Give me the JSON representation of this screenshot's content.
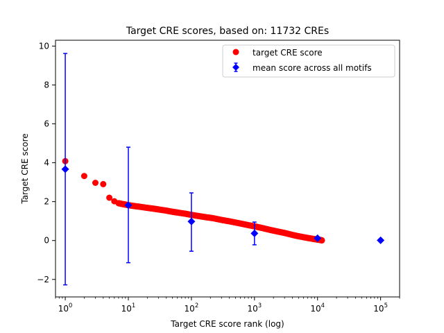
{
  "chart_data": {
    "type": "scatter",
    "title": "Target CRE scores, based on: 11732 CREs",
    "xlabel": "Target CRE score rank (log)",
    "ylabel": "Target CRE score",
    "xscale": "log",
    "xlim": [
      0.7,
      200000
    ],
    "ylim": [
      -2.9,
      10.3
    ],
    "grid": false,
    "legend_placement": "top-right",
    "x_ticks": [
      {
        "value": 1,
        "base": "10",
        "exp": "0"
      },
      {
        "value": 10,
        "base": "10",
        "exp": "1"
      },
      {
        "value": 100,
        "base": "10",
        "exp": "2"
      },
      {
        "value": 1000,
        "base": "10",
        "exp": "3"
      },
      {
        "value": 10000,
        "base": "10",
        "exp": "4"
      },
      {
        "value": 100000,
        "base": "10",
        "exp": "5"
      }
    ],
    "y_ticks": [
      {
        "value": -2,
        "label": "−2"
      },
      {
        "value": 0,
        "label": "0"
      },
      {
        "value": 2,
        "label": "2"
      },
      {
        "value": 4,
        "label": "4"
      },
      {
        "value": 6,
        "label": "6"
      },
      {
        "value": 8,
        "label": "8"
      },
      {
        "value": 10,
        "label": "10"
      }
    ],
    "series": [
      {
        "name": "target CRE score",
        "marker": "circle",
        "color": "#ff0000",
        "points": [
          [
            1,
            4.08
          ],
          [
            2,
            3.32
          ],
          [
            3,
            2.97
          ],
          [
            4,
            2.9
          ],
          [
            5,
            2.2
          ],
          [
            6,
            2.02
          ],
          [
            7,
            1.92
          ],
          [
            8,
            1.88
          ],
          [
            9,
            1.85
          ],
          [
            10,
            1.82
          ],
          [
            12,
            1.78
          ],
          [
            15,
            1.74
          ],
          [
            20,
            1.68
          ],
          [
            25,
            1.64
          ],
          [
            30,
            1.6
          ],
          [
            40,
            1.54
          ],
          [
            50,
            1.48
          ],
          [
            60,
            1.44
          ],
          [
            80,
            1.38
          ],
          [
            100,
            1.32
          ],
          [
            130,
            1.26
          ],
          [
            170,
            1.2
          ],
          [
            220,
            1.15
          ],
          [
            300,
            1.06
          ],
          [
            400,
            0.99
          ],
          [
            550,
            0.9
          ],
          [
            750,
            0.81
          ],
          [
            1000,
            0.73
          ],
          [
            1300,
            0.65
          ],
          [
            1700,
            0.56
          ],
          [
            2200,
            0.48
          ],
          [
            3000,
            0.39
          ],
          [
            4000,
            0.29
          ],
          [
            5000,
            0.22
          ],
          [
            6500,
            0.15
          ],
          [
            8000,
            0.1
          ],
          [
            9500,
            0.06
          ],
          [
            10500,
            0.04
          ],
          [
            11000,
            0.03
          ],
          [
            11732,
            0.01
          ]
        ]
      },
      {
        "name": "mean score across all motifs",
        "marker": "diamond",
        "color": "#0000ff",
        "points": [
          {
            "x": 1,
            "y": 3.67,
            "ymin": -2.28,
            "ymax": 9.62
          },
          {
            "x": 10,
            "y": 1.82,
            "ymin": -1.14,
            "ymax": 4.8
          },
          {
            "x": 100,
            "y": 0.98,
            "ymin": -0.55,
            "ymax": 2.45
          },
          {
            "x": 1000,
            "y": 0.37,
            "ymin": -0.22,
            "ymax": 0.95
          },
          {
            "x": 10000,
            "y": 0.12,
            "ymin": 0.05,
            "ymax": 0.18
          },
          {
            "x": 100000,
            "y": 0.01,
            "ymin": 0.01,
            "ymax": 0.01
          }
        ]
      }
    ]
  }
}
